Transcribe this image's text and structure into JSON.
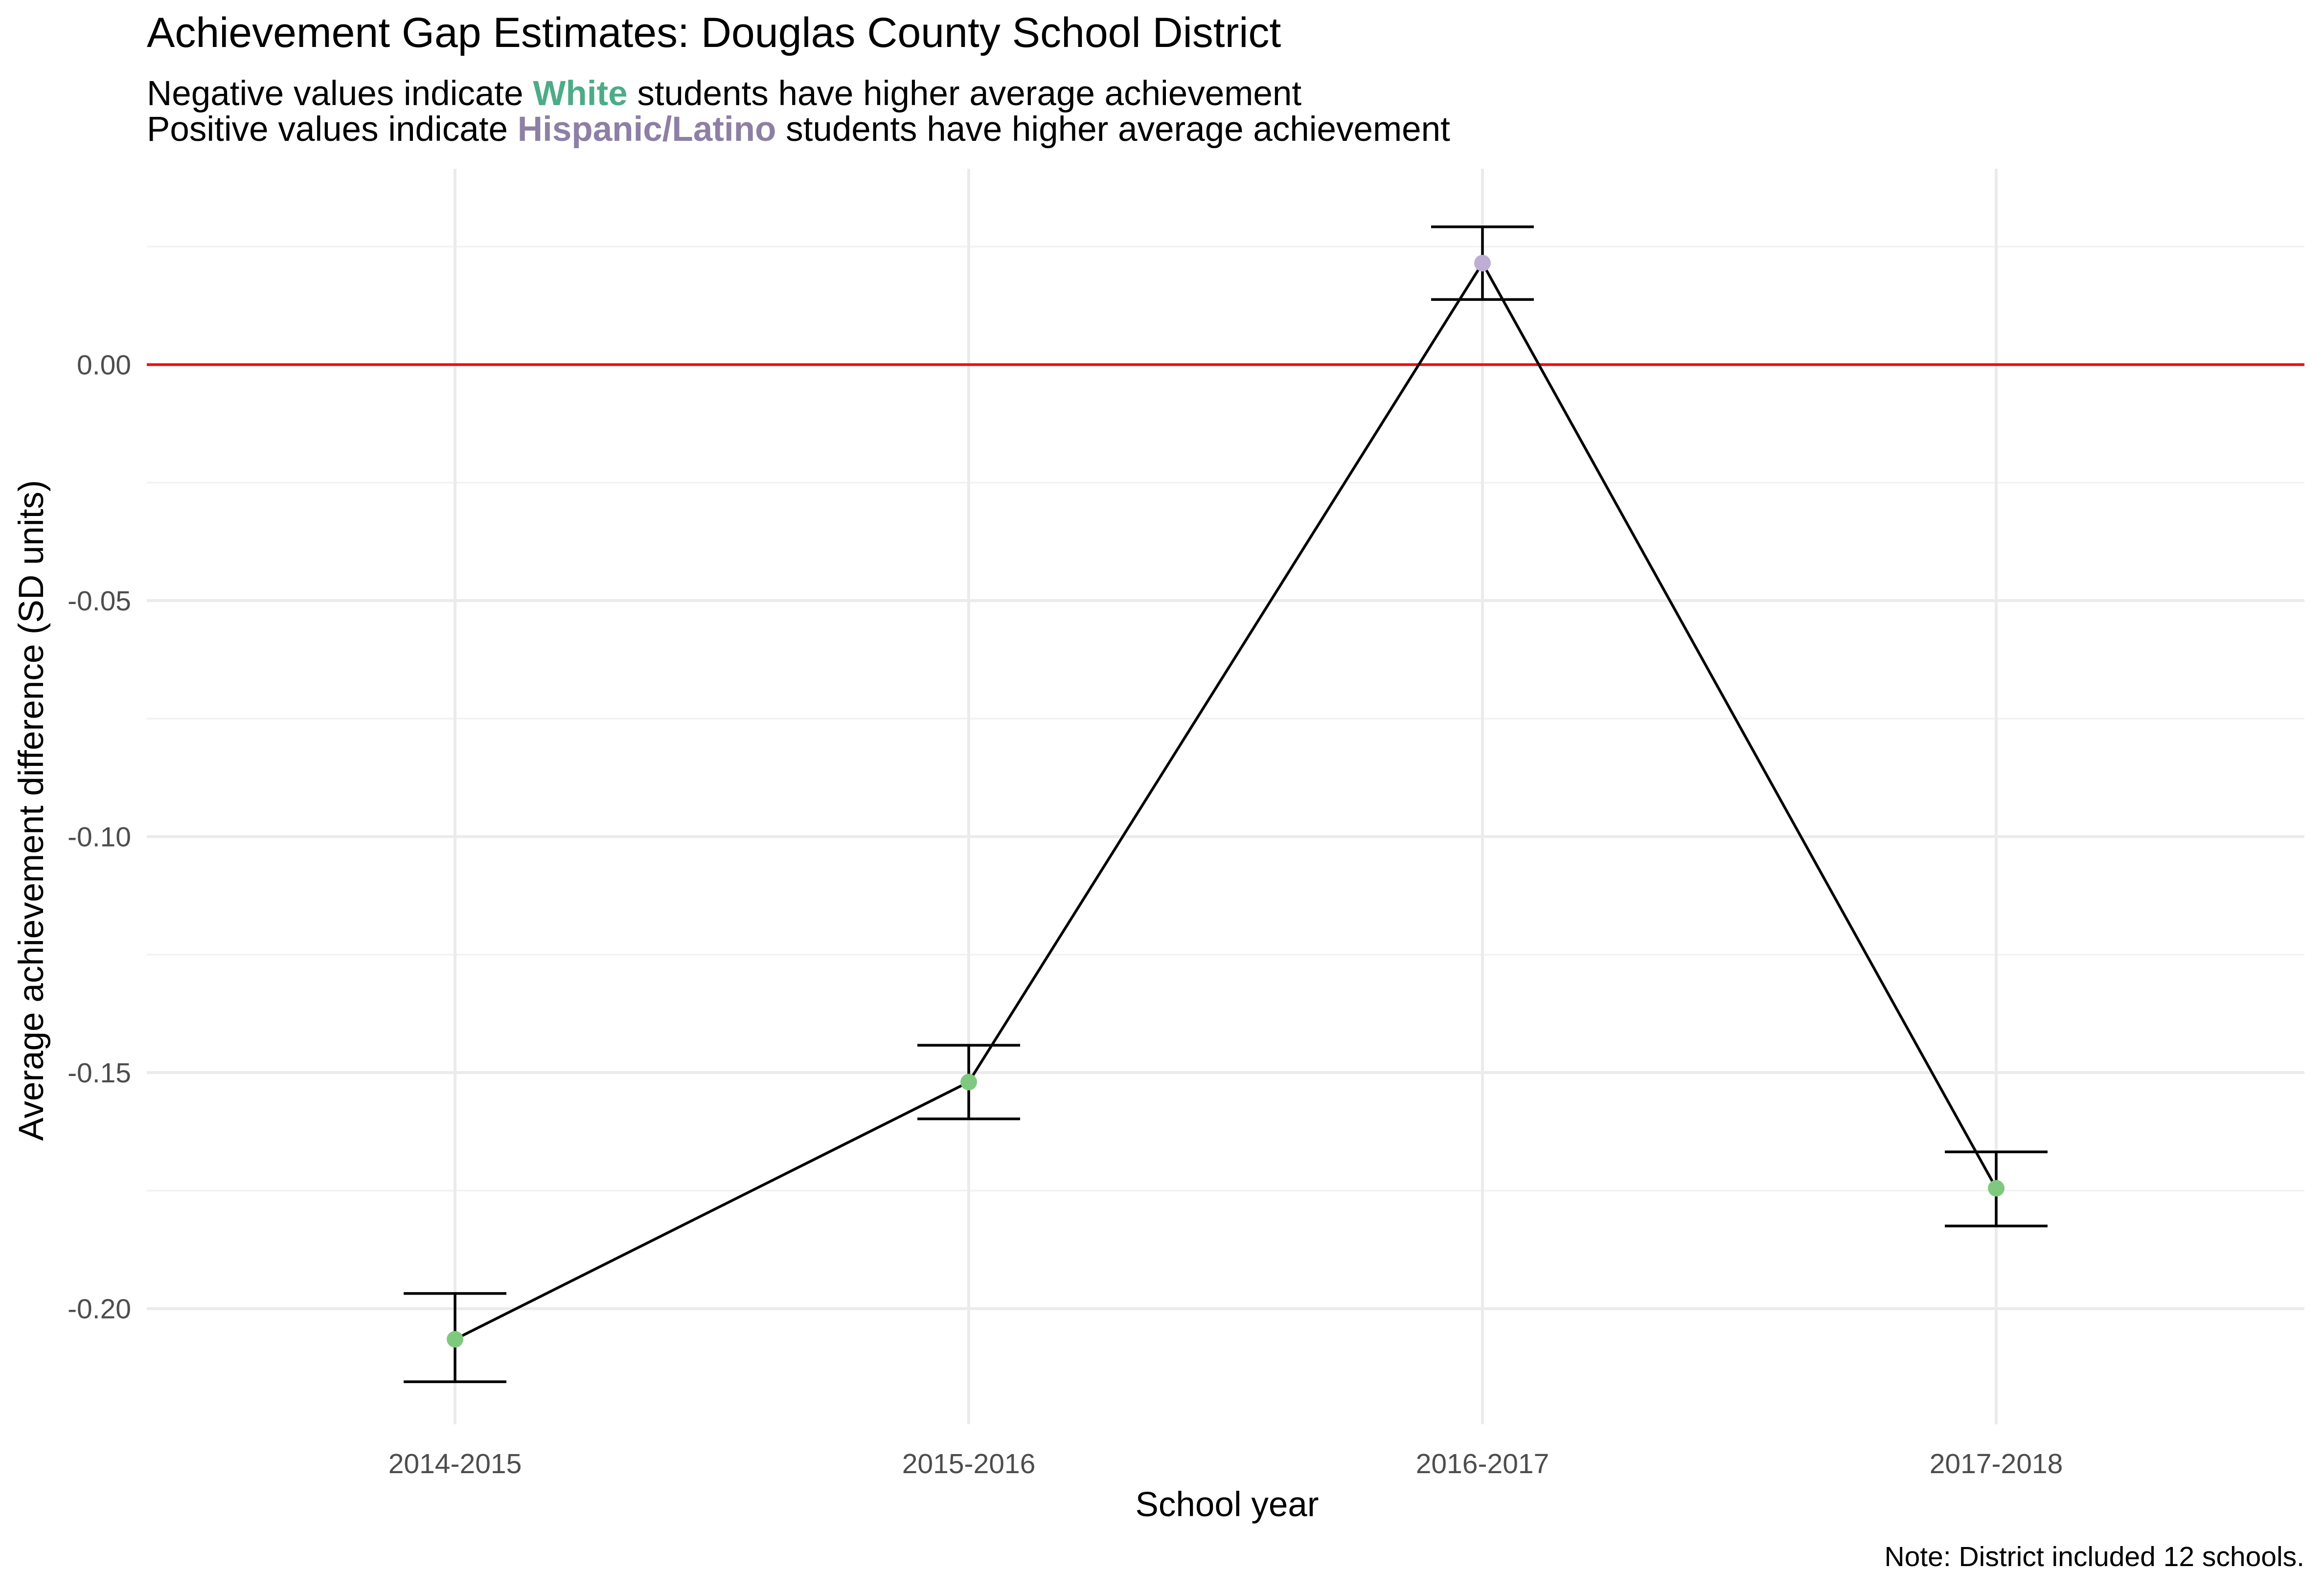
{
  "chart_data": {
    "type": "line",
    "title": "Achievement Gap Estimates: Douglas County School District",
    "subtitle_lines": [
      {
        "prefix": "Negative values indicate ",
        "highlight": "White",
        "suffix": " students have higher average achievement",
        "highlight_color": "#4DAC87"
      },
      {
        "prefix": "Positive values indicate ",
        "highlight": "Hispanic/Latino",
        "suffix": " students have higher average achievement",
        "highlight_color": "#8E7FA6"
      }
    ],
    "xlabel": "School year",
    "ylabel": "Average achievement difference (SD units)",
    "caption": "Note: District included 12 schools.",
    "categories": [
      "2014-2015",
      "2015-2016",
      "2016-2017",
      "2017-2018"
    ],
    "values": [
      -0.2065,
      -0.152,
      0.0215,
      -0.1745
    ],
    "error_lower": [
      -0.2155,
      -0.1598,
      0.0138,
      -0.1825
    ],
    "error_upper": [
      -0.1968,
      -0.1442,
      0.0292,
      -0.1668
    ],
    "point_colors": [
      "#7FC97F",
      "#7FC97F",
      "#BEAED4",
      "#7FC97F"
    ],
    "line_color": "#000000",
    "reference_line": {
      "y": 0,
      "color": "#FF0000"
    },
    "ylim": [
      -0.2245,
      0.0415
    ],
    "yticks": [
      -0.2,
      -0.15,
      -0.1,
      -0.05,
      0.0
    ],
    "ytick_labels": [
      "-0.20",
      "-0.15",
      "-0.10",
      "-0.05",
      "0.00"
    ],
    "grid": true
  }
}
